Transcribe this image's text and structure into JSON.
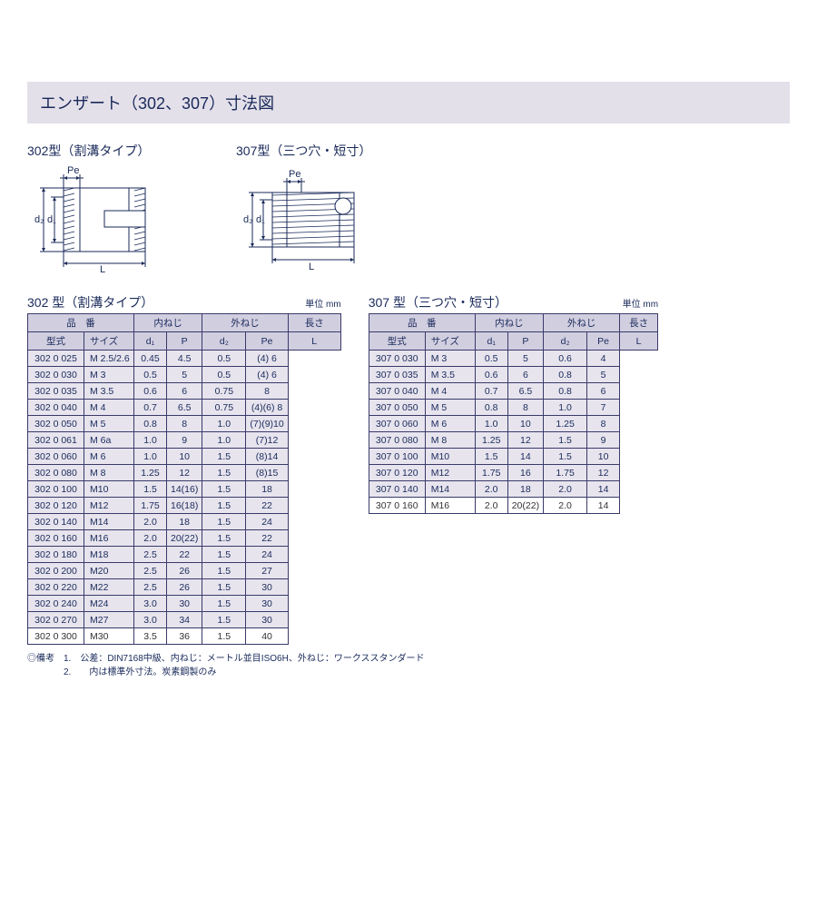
{
  "title": "エンザート（302、307）寸法図",
  "diagram302_label": "302型（割溝タイプ）",
  "diagram307_label": "307型（三つ穴・短寸）",
  "dim_Pe": "Pe",
  "dim_d1": "d₁",
  "dim_d2": "d₂",
  "dim_L": "L",
  "t302_title": "302 型（割溝タイプ）",
  "t307_title": "307 型（三つ穴・短寸）",
  "unit": "単位 mm",
  "h_item": "品　番",
  "h_inner": "内ねじ",
  "h_outer": "外ねじ",
  "h_len": "長さ",
  "h_model": "型式",
  "h_size": "サイズ",
  "h_d1": "d₁",
  "h_P": "P",
  "h_d2": "d₂",
  "h_Pe": "Pe",
  "h_L": "L",
  "t302": {
    "rows": [
      [
        "302 0 025",
        "M 2.5/2.6",
        "0.45",
        "4.5",
        "0.5",
        "(4) 6"
      ],
      [
        "302 0 030",
        "M 3",
        "0.5",
        "5",
        "0.5",
        "(4) 6"
      ],
      [
        "302 0 035",
        "M 3.5",
        "0.6",
        "6",
        "0.75",
        "8"
      ],
      [
        "302 0 040",
        "M 4",
        "0.7",
        "6.5",
        "0.75",
        "(4)(6) 8"
      ],
      [
        "302 0 050",
        "M 5",
        "0.8",
        "8",
        "1.0",
        "(7)(9)10"
      ],
      [
        "302 0 061",
        "M 6a",
        "1.0",
        "9",
        "1.0",
        "(7)12"
      ],
      [
        "302 0 060",
        "M 6",
        "1.0",
        "10",
        "1.5",
        "(8)14"
      ],
      [
        "302 0 080",
        "M 8",
        "1.25",
        "12",
        "1.5",
        "(8)15"
      ],
      [
        "302 0 100",
        "M10",
        "1.5",
        "14(16)",
        "1.5",
        "18"
      ],
      [
        "302 0 120",
        "M12",
        "1.75",
        "16(18)",
        "1.5",
        "22"
      ],
      [
        "302 0 140",
        "M14",
        "2.0",
        "18",
        "1.5",
        "24"
      ],
      [
        "302 0 160",
        "M16",
        "2.0",
        "20(22)",
        "1.5",
        "22"
      ],
      [
        "302 0 180",
        "M18",
        "2.5",
        "22",
        "1.5",
        "24"
      ],
      [
        "302 0 200",
        "M20",
        "2.5",
        "26",
        "1.5",
        "27"
      ],
      [
        "302 0 220",
        "M22",
        "2.5",
        "26",
        "1.5",
        "30"
      ],
      [
        "302 0 240",
        "M24",
        "3.0",
        "30",
        "1.5",
        "30"
      ],
      [
        "302 0 270",
        "M27",
        "3.0",
        "34",
        "1.5",
        "30"
      ],
      [
        "302 0 300",
        "M30",
        "3.5",
        "36",
        "1.5",
        "40"
      ]
    ]
  },
  "t307": {
    "rows": [
      [
        "307 0 030",
        "M 3",
        "0.5",
        "5",
        "0.6",
        "4"
      ],
      [
        "307 0 035",
        "M 3.5",
        "0.6",
        "6",
        "0.8",
        "5"
      ],
      [
        "307 0 040",
        "M 4",
        "0.7",
        "6.5",
        "0.8",
        "6"
      ],
      [
        "307 0 050",
        "M 5",
        "0.8",
        "8",
        "1.0",
        "7"
      ],
      [
        "307 0 060",
        "M 6",
        "1.0",
        "10",
        "1.25",
        "8"
      ],
      [
        "307 0 080",
        "M 8",
        "1.25",
        "12",
        "1.5",
        "9"
      ],
      [
        "307 0 100",
        "M10",
        "1.5",
        "14",
        "1.5",
        "10"
      ],
      [
        "307 0 120",
        "M12",
        "1.75",
        "16",
        "1.75",
        "12"
      ],
      [
        "307 0 140",
        "M14",
        "2.0",
        "18",
        "2.0",
        "14"
      ],
      [
        "307 0 160",
        "M16",
        "2.0",
        "20(22)",
        "2.0",
        "14"
      ]
    ]
  },
  "note1": "◎備考　1.　公差：DIN7168中級、内ねじ：メートル並目ISO6H、外ねじ：ワークススタンダード",
  "note2": "　　　　2.　　内は標準外寸法。炭素鋼製のみ",
  "colors": {
    "title_bg": "#e4e0ea",
    "title_text": "#1a2a5a",
    "header_bg": "#d1cee0",
    "cell_bg": "#e7e4ee",
    "border": "#3a3a6a"
  }
}
